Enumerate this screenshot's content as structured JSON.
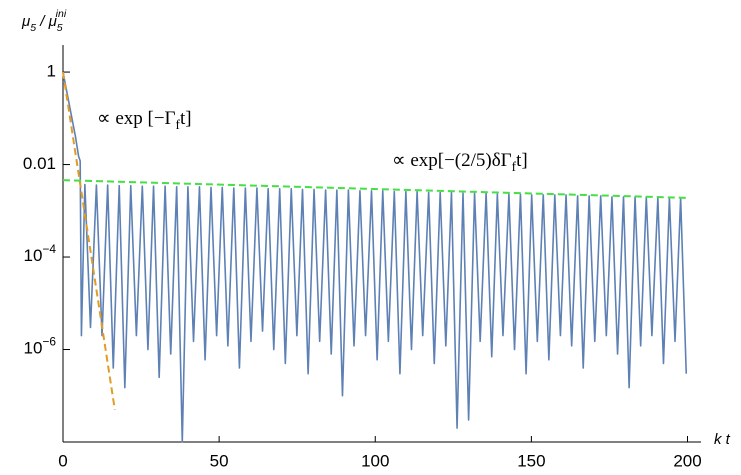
{
  "chart_data": {
    "type": "line",
    "log_y": true,
    "x_label": "k t",
    "y_label": [
      {
        "text": "μ"
      },
      {
        "text": "5",
        "sub": true
      },
      {
        "text": " / μ"
      },
      {
        "text": "5",
        "sub": true
      },
      {
        "text": "ini",
        "sup": true
      }
    ],
    "annotations": [
      [
        {
          "text": "∝ exp [−Γ"
        },
        {
          "text": "f",
          "sub": true
        },
        {
          "text": "t]"
        }
      ],
      [
        {
          "text": "∝ exp[−(2/5)δΓ"
        },
        {
          "text": "f",
          "sub": true
        },
        {
          "text": "t]"
        }
      ]
    ],
    "xlim": [
      0,
      204
    ],
    "xticks": [
      0,
      50,
      100,
      150,
      200
    ],
    "ylim": [
      1e-08,
      3
    ],
    "yticks": [
      1,
      0.01,
      {
        "value": 0.0001,
        "label": "10",
        "exponent": "−4"
      },
      {
        "value": 1e-06,
        "label": "10",
        "exponent": "−6"
      }
    ],
    "series": [
      {
        "color": "#5e81b5",
        "dashed": false,
        "x": [
          0,
          2,
          4,
          5,
          5.5,
          5.9,
          7.0,
          8.8,
          10.7,
          12.5,
          14.3,
          16.1,
          18.0,
          19.8,
          21.7,
          23.5,
          25.4,
          27.2,
          29.0,
          30.8,
          32.7,
          34.5,
          36.4,
          38.2,
          40.0,
          41.8,
          43.7,
          45.5,
          47.4,
          49.2,
          51.0,
          52.8,
          54.7,
          56.5,
          58.4,
          60.2,
          62.1,
          63.9,
          65.7,
          67.5,
          69.4,
          71.2,
          73.1,
          74.9,
          76.7,
          78.5,
          80.4,
          82.2,
          84.1,
          85.9,
          87.7,
          89.5,
          91.4,
          93.2,
          95.1,
          96.9,
          98.8,
          100.6,
          102.4,
          104.2,
          106.1,
          107.9,
          109.8,
          111.6,
          113.4,
          115.2,
          117.1,
          118.9,
          120.8,
          122.6,
          124.4,
          126.2,
          128.1,
          129.9,
          131.8,
          133.6,
          135.5,
          137.3,
          139.1,
          140.9,
          142.8,
          144.6,
          146.5,
          148.3,
          150.1,
          151.9,
          153.8,
          155.6,
          157.5,
          159.3,
          161.1,
          162.9,
          164.8,
          166.6,
          168.5,
          170.3,
          172.2,
          174.0,
          175.8,
          177.6,
          179.5,
          181.3,
          183.2,
          185.0,
          186.8,
          188.6,
          190.5,
          192.3,
          194.2,
          196.0,
          197.8,
          199.6
        ],
        "values": [
          1,
          0.2,
          0.04,
          0.015,
          0.012,
          2e-06,
          0.0037,
          3e-06,
          0.0036,
          2e-06,
          0.0036,
          4e-07,
          0.0035,
          1.5e-07,
          0.0035,
          2e-06,
          0.0034,
          1e-06,
          0.0034,
          2.5e-07,
          0.0034,
          8e-07,
          0.0033,
          1e-08,
          0.0033,
          1.5e-06,
          0.0033,
          6e-07,
          0.0032,
          2e-06,
          0.0032,
          1.2e-06,
          0.0031,
          4e-07,
          0.0031,
          1.5e-06,
          0.0031,
          2.5e-06,
          0.003,
          1e-06,
          0.003,
          5e-07,
          0.003,
          2e-06,
          0.0029,
          3e-07,
          0.0029,
          1.5e-06,
          0.0028,
          8e-07,
          0.0028,
          1e-07,
          0.0028,
          1.2e-06,
          0.0027,
          2e-06,
          0.0027,
          6e-07,
          0.0027,
          1.5e-06,
          0.0026,
          3e-07,
          0.0026,
          1e-06,
          0.0026,
          2e-06,
          0.0025,
          5e-07,
          0.0025,
          1.2e-06,
          0.0025,
          2e-08,
          0.0024,
          3e-08,
          0.0024,
          1.5e-06,
          0.0024,
          7e-07,
          0.0023,
          2e-06,
          0.0023,
          1e-06,
          0.0023,
          3e-07,
          0.0022,
          1.5e-06,
          0.0022,
          6e-07,
          0.0022,
          2e-06,
          0.0022,
          1.2e-06,
          0.0021,
          4e-07,
          0.0021,
          1.5e-06,
          0.0021,
          2e-06,
          0.002,
          8e-07,
          0.002,
          1.5e-07,
          0.002,
          1.2e-06,
          0.002,
          2e-06,
          0.0019,
          5e-07,
          0.0019,
          1.5e-06,
          0.0019,
          3e-07
        ]
      },
      {
        "color": "#e19c24",
        "dashed": true,
        "x": [
          0,
          16.6
        ],
        "values": [
          1,
          5e-08
        ]
      },
      {
        "color": "#44e044",
        "dashed": true,
        "x": [
          0,
          200
        ],
        "values": [
          0.0046,
          0.0019
        ]
      }
    ]
  }
}
